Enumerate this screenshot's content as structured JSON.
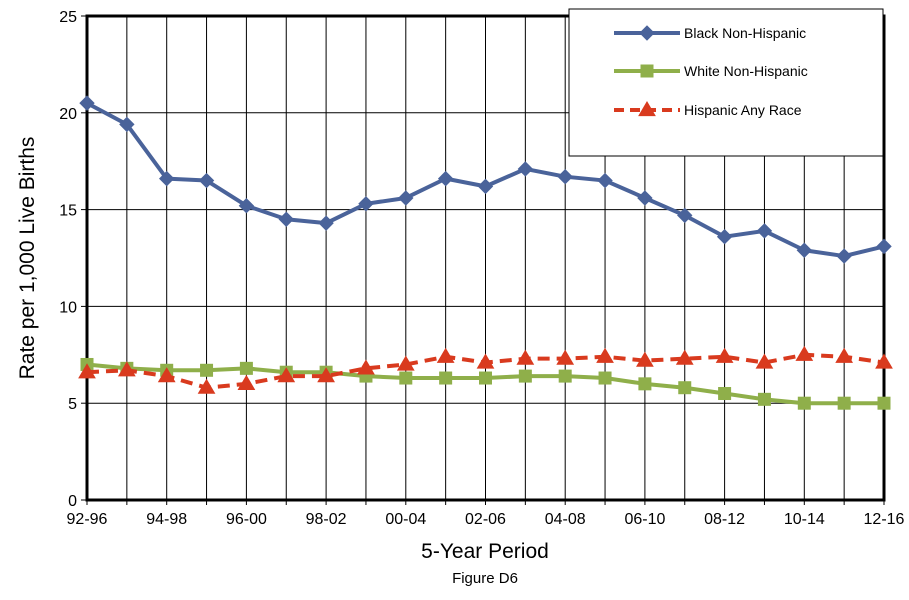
{
  "chart_data": {
    "type": "line",
    "title": "",
    "caption": "Figure D6",
    "xlabel": "5-Year Period",
    "ylabel": "Rate per 1,000 Live Births",
    "ylim": [
      0,
      25
    ],
    "yticks": [
      "0",
      "5",
      "10",
      "15",
      "20",
      "25"
    ],
    "yticks_values": [
      0,
      5,
      10,
      15,
      20,
      25
    ],
    "grid": true,
    "legend_position": "top-right",
    "x": [
      "92-96",
      "93-97",
      "94-98",
      "95-99",
      "96-00",
      "97-01",
      "98-02",
      "99-03",
      "00-04",
      "01-05",
      "02-06",
      "03-07",
      "04-08",
      "05-09",
      "06-10",
      "07-11",
      "08-12",
      "09-13",
      "10-14",
      "11-15",
      "12-16"
    ],
    "x_tick_labels_shown": [
      "92-96",
      "",
      "94-98",
      "",
      "96-00",
      "",
      "98-02",
      "",
      "00-04",
      "",
      "02-06",
      "",
      "04-08",
      "",
      "06-10",
      "",
      "08-12",
      "",
      "10-14",
      "",
      "12-16"
    ],
    "series": [
      {
        "name": "Black Non-Hispanic",
        "color": "#4a639a",
        "marker": "diamond",
        "line_style": "solid",
        "values": [
          20.5,
          19.4,
          16.6,
          16.5,
          15.2,
          14.5,
          14.3,
          15.3,
          15.6,
          16.6,
          16.2,
          17.1,
          16.7,
          16.5,
          15.6,
          14.7,
          13.6,
          13.9,
          12.9,
          12.6,
          13.1
        ]
      },
      {
        "name": "White Non-Hispanic",
        "color": "#8faf4a",
        "marker": "square",
        "line_style": "solid",
        "values": [
          7.0,
          6.8,
          6.7,
          6.7,
          6.8,
          6.6,
          6.6,
          6.4,
          6.3,
          6.3,
          6.3,
          6.4,
          6.4,
          6.3,
          6.0,
          5.8,
          5.5,
          5.2,
          5.0,
          5.0,
          5.0
        ]
      },
      {
        "name": "Hispanic Any Race",
        "color": "#d93a1e",
        "marker": "triangle",
        "line_style": "dashed",
        "values": [
          6.6,
          6.7,
          6.4,
          5.8,
          6.0,
          6.4,
          6.4,
          6.8,
          7.0,
          7.4,
          7.1,
          7.3,
          7.3,
          7.4,
          7.2,
          7.3,
          7.4,
          7.1,
          7.5,
          7.4,
          7.1
        ]
      }
    ]
  }
}
